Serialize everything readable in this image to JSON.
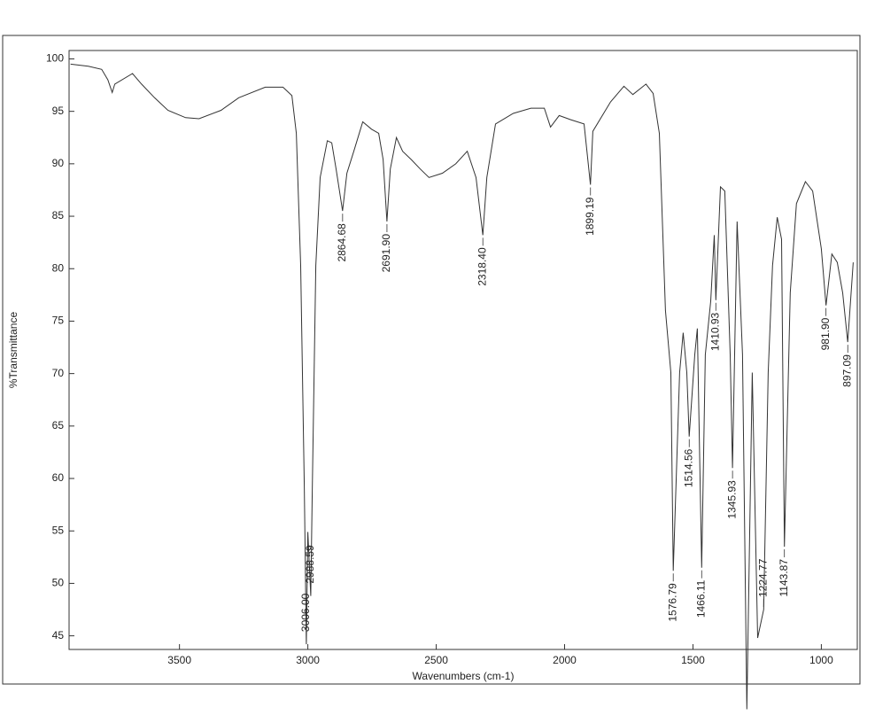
{
  "chart_data": {
    "type": "line",
    "x_label": "Wavenumbers (cm-1)",
    "y_label": "%Transmittance",
    "color": "#333333",
    "xlim": [
      3930,
      860
    ],
    "ylim": [
      43.7,
      100.8
    ],
    "xticks": [
      3500,
      3000,
      2500,
      2000,
      1500,
      1000
    ],
    "yticks": [
      45,
      50,
      55,
      60,
      65,
      70,
      75,
      80,
      85,
      90,
      95,
      100
    ],
    "x": [
      3924,
      3855,
      3803,
      3779,
      3762,
      3752,
      3683,
      3648,
      3597,
      3545,
      3476,
      3424,
      3338,
      3269,
      3166,
      3097,
      3062,
      3045,
      3028,
      3014,
      3006,
      3000,
      2988.59,
      2983,
      2969,
      2952,
      2924,
      2907,
      2890,
      2864.68,
      2848,
      2821,
      2786,
      2752,
      2724,
      2707,
      2691.9,
      2679,
      2655,
      2631,
      2597,
      2562,
      2528,
      2476,
      2424,
      2379,
      2345,
      2318.4,
      2303,
      2269,
      2200,
      2131,
      2079,
      2055,
      2021,
      1976,
      1924,
      1899.19,
      1890,
      1821,
      1769,
      1734,
      1683,
      1655,
      1631,
      1607,
      1586,
      1576.79,
      1552,
      1538,
      1524,
      1514.56,
      1493,
      1483,
      1466.11,
      1452,
      1431,
      1417,
      1410.93,
      1393,
      1376,
      1355,
      1345.93,
      1328,
      1307,
      1290,
      1269,
      1248,
      1224.77,
      1207,
      1190,
      1172,
      1155,
      1143.87,
      1121,
      1097,
      1062,
      1034,
      1000,
      981.9,
      959,
      938,
      917,
      897.09,
      876
    ],
    "values": [
      99.5,
      99.3,
      99,
      98,
      96.8,
      97.6,
      98.6,
      97.6,
      96.3,
      95.1,
      94.4,
      94.3,
      95.1,
      96.3,
      97.3,
      97.3,
      96.5,
      92.9,
      80.3,
      59.2,
      44.2,
      54.9,
      48.8,
      58.3,
      80.3,
      88.7,
      92.2,
      92,
      89.5,
      85.5,
      89.1,
      91.2,
      94,
      93.3,
      92.9,
      90.4,
      84.5,
      89.5,
      92.5,
      91.2,
      90.4,
      89.5,
      88.7,
      89.1,
      90,
      91.2,
      88.7,
      83.2,
      88.7,
      93.8,
      94.8,
      95.3,
      95.3,
      93.5,
      94.6,
      94.2,
      93.8,
      88,
      93.1,
      95.9,
      97.4,
      96.6,
      97.6,
      96.7,
      92.9,
      76,
      70.1,
      51.2,
      70.1,
      73.9,
      70.1,
      64,
      71.8,
      74.3,
      51.5,
      71.8,
      76.9,
      83.2,
      77,
      87.8,
      87.4,
      71.8,
      61,
      84.5,
      71.8,
      38,
      70.1,
      44.8,
      47.5,
      70.1,
      80.3,
      84.9,
      82.8,
      53.5,
      77.7,
      86.2,
      88.3,
      87.4,
      81.9,
      76.5,
      81.4,
      80.6,
      77.7,
      73,
      80.6
    ],
    "annotations": [
      {
        "label": "3006.00",
        "x": 3006,
        "y": 44.2
      },
      {
        "label": "2988.59",
        "x": 2988.59,
        "y": 48.8
      },
      {
        "label": "2864.68",
        "x": 2864.68,
        "y": 85.5
      },
      {
        "label": "2691.90",
        "x": 2691.9,
        "y": 84.5
      },
      {
        "label": "2318.40",
        "x": 2318.4,
        "y": 83.2
      },
      {
        "label": "1899.19",
        "x": 1899.19,
        "y": 88
      },
      {
        "label": "1576.79",
        "x": 1576.79,
        "y": 51.2
      },
      {
        "label": "1514.56",
        "x": 1514.56,
        "y": 64
      },
      {
        "label": "1466.11",
        "x": 1466.11,
        "y": 51.5
      },
      {
        "label": "1410.93",
        "x": 1410.93,
        "y": 77
      },
      {
        "label": "1345.93",
        "x": 1345.93,
        "y": 61
      },
      {
        "label": "1224.77",
        "x": 1224.77,
        "y": 47.5
      },
      {
        "label": "1143.87",
        "x": 1143.87,
        "y": 53.5
      },
      {
        "label": "981.90",
        "x": 981.9,
        "y": 76.5
      },
      {
        "label": "897.09",
        "x": 897.09,
        "y": 73
      }
    ]
  }
}
